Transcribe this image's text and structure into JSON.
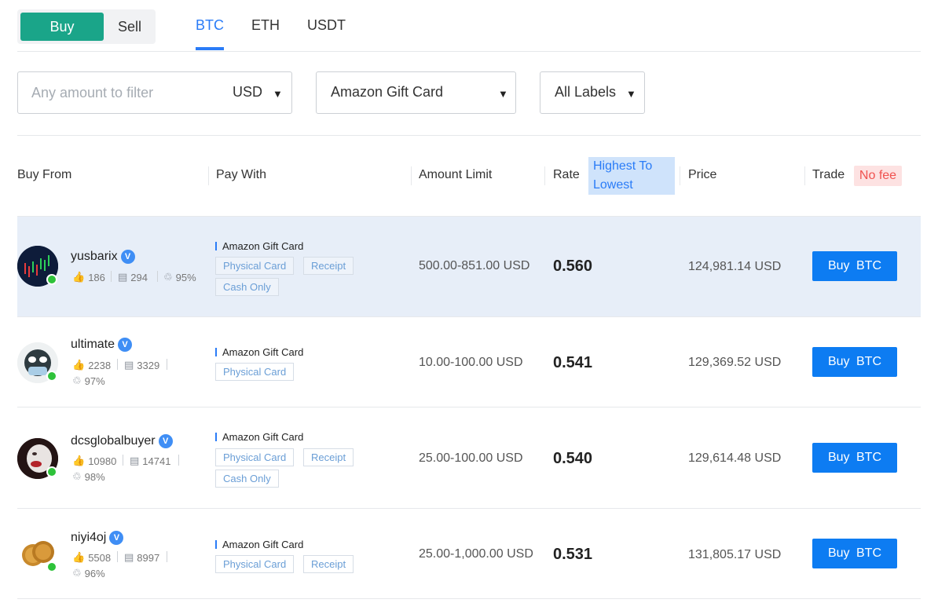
{
  "toggle": {
    "buy": "Buy",
    "sell": "Sell"
  },
  "tabs": [
    "BTC",
    "ETH",
    "USDT"
  ],
  "filters": {
    "amount_placeholder": "Any amount to filter",
    "currency": "USD",
    "payment_method": "Amazon Gift Card",
    "labels": "All Labels"
  },
  "table_header": {
    "buy_from": "Buy From",
    "pay_with": "Pay With",
    "amount_limit": "Amount Limit",
    "rate": "Rate",
    "sort": "Highest To Lowest",
    "price": "Price",
    "trade": "Trade",
    "no_fee": "No fee"
  },
  "verified_mark": "V",
  "offers": [
    {
      "name": "yusbarix",
      "likes": "186",
      "trades": "294",
      "rating": "95%",
      "pay_with": "Amazon Gift Card",
      "tags": [
        "Physical Card",
        "Receipt",
        "Cash Only"
      ],
      "limit": "500.00-851.00 USD",
      "rate": "0.560",
      "price": "124,981.14 USD",
      "button": "Buy BTC"
    },
    {
      "name": "ultimate",
      "likes": "2238",
      "trades": "3329",
      "rating": "97%",
      "pay_with": "Amazon Gift Card",
      "tags": [
        "Physical Card"
      ],
      "limit": "10.00-100.00 USD",
      "rate": "0.541",
      "price": "129,369.52 USD",
      "button": "Buy BTC"
    },
    {
      "name": "dcsglobalbuyer",
      "likes": "10980",
      "trades": "14741",
      "rating": "98%",
      "pay_with": "Amazon Gift Card",
      "tags": [
        "Physical Card",
        "Receipt",
        "Cash Only"
      ],
      "limit": "25.00-100.00 USD",
      "rate": "0.540",
      "price": "129,614.48 USD",
      "button": "Buy BTC"
    },
    {
      "name": "niyi4oj",
      "likes": "5508",
      "trades": "8997",
      "rating": "96%",
      "pay_with": "Amazon Gift Card",
      "tags": [
        "Physical Card",
        "Receipt"
      ],
      "limit": "25.00-1,000.00 USD",
      "rate": "0.531",
      "price": "131,805.17 USD",
      "button": "Buy BTC"
    }
  ],
  "colors": {
    "buy_green": "#1aa589",
    "accent_blue": "#2a7cf7",
    "button_blue": "#0d7cf2",
    "online_green": "#2ec23a",
    "no_fee_red": "#f0524f",
    "highlight_row": "#e7eef8"
  }
}
